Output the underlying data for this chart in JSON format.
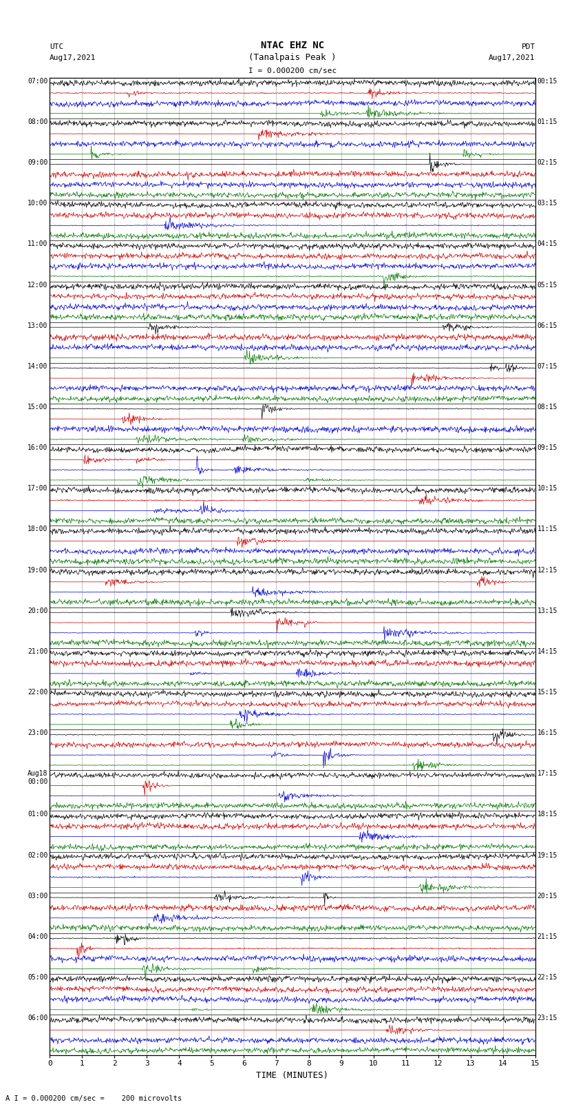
{
  "title_line1": "NTAC EHZ NC",
  "title_line2": "(Tanalpais Peak )",
  "scale_label": "I = 0.000200 cm/sec",
  "bottom_scale": "A I = 0.000200 cm/sec =    200 microvolts",
  "left_label": "UTC\nAug17,2021",
  "right_label": "PDT\nAug17,2021",
  "xlabel": "TIME (MINUTES)",
  "bg_color": "#ffffff",
  "trace_colors": [
    "#000000",
    "#cc0000",
    "#0000cc",
    "#007700"
  ],
  "utc_times": [
    "07:00",
    "08:00",
    "09:00",
    "10:00",
    "11:00",
    "12:00",
    "13:00",
    "14:00",
    "15:00",
    "16:00",
    "17:00",
    "18:00",
    "19:00",
    "20:00",
    "21:00",
    "22:00",
    "23:00",
    "Aug18\n00:00",
    "01:00",
    "02:00",
    "03:00",
    "04:00",
    "05:00",
    "06:00"
  ],
  "pdt_times": [
    "00:15",
    "01:15",
    "02:15",
    "03:15",
    "04:15",
    "05:15",
    "06:15",
    "07:15",
    "08:15",
    "09:15",
    "10:15",
    "11:15",
    "12:15",
    "13:15",
    "14:15",
    "15:15",
    "16:15",
    "17:15",
    "18:15",
    "19:15",
    "20:15",
    "21:15",
    "22:15",
    "23:15"
  ],
  "n_hours": 24,
  "traces_per_hour": 4,
  "n_minutes": 15,
  "samples_per_minute": 60,
  "base_noise": 0.06,
  "grid_color": "#aaaaaa",
  "grid_lw": 0.5,
  "trace_lw": 0.5,
  "figsize": [
    8.5,
    16.13
  ],
  "dpi": 100
}
